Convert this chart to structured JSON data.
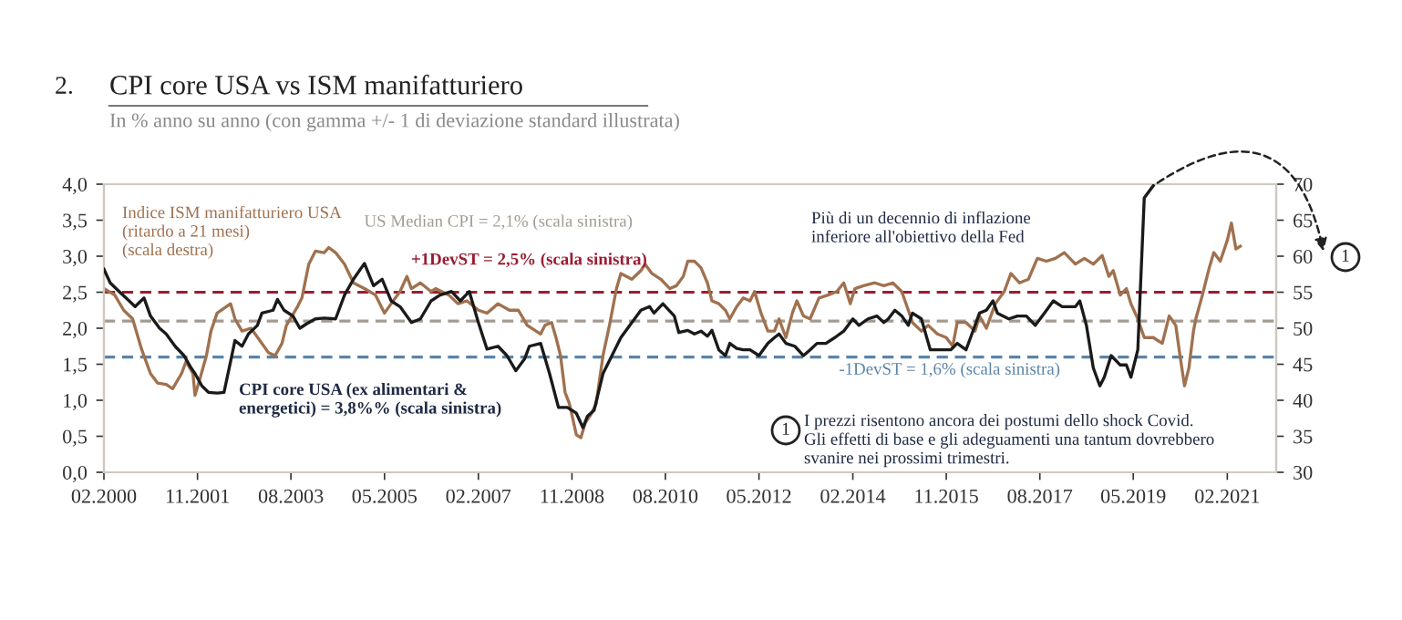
{
  "chart_data": {
    "type": "line",
    "title": "CPI core USA vs ISM manifatturiero",
    "subtitle": "In % anno su anno (con gamma +/- 1 di deviazione standard illustrata)",
    "annotations": [
      "2.",
      "Indice ISM manifatturiero USA\n(ritardo a 21 mesi)\n(scala destra)",
      "CPI core USA (ex alimentari &\nenergetici) = 3,8%% (scala sinistra)",
      "Più di un decennio di inflazione\ninferiore all'obiettivo della Fed",
      "I prezzi risentono ancora dei postumi dello shock Covid.\nGli effetti di base e gli adeguamenti una tantum dovrebbero\nsvanire nei prossimi trimestri.",
      "1",
      "1"
    ],
    "xlim": [
      "2000-02-01",
      "2022-01-01"
    ],
    "xticks": [
      {
        "value": "2000-02",
        "label": "02.2000"
      },
      {
        "value": "2001-11",
        "label": "11.2001"
      },
      {
        "value": "2003-08",
        "label": "08.2003"
      },
      {
        "value": "2005-05",
        "label": "05.2005"
      },
      {
        "value": "2007-02",
        "label": "02.2007"
      },
      {
        "value": "2008-11",
        "label": "11.2008"
      },
      {
        "value": "2010-08",
        "label": "08.2010"
      },
      {
        "value": "2012-05",
        "label": "05.2012"
      },
      {
        "value": "2014-02",
        "label": "02.2014"
      },
      {
        "value": "2015-11",
        "label": "11.2015"
      },
      {
        "value": "2017-08",
        "label": "08.2017"
      },
      {
        "value": "2019-05",
        "label": "05.2019"
      },
      {
        "value": "2021-02",
        "label": "02.2021"
      }
    ],
    "ylim": [
      0,
      4
    ],
    "yticks": [
      {
        "value": 0,
        "label": "0,0"
      },
      {
        "value": 0.5,
        "label": "0,5"
      },
      {
        "value": 1,
        "label": "1,0"
      },
      {
        "value": 1.5,
        "label": "1,5"
      },
      {
        "value": 2,
        "label": "2,0"
      },
      {
        "value": 2.5,
        "label": "2,5"
      },
      {
        "value": 3,
        "label": "3,0"
      },
      {
        "value": 3.5,
        "label": "3,5"
      },
      {
        "value": 4,
        "label": "4,0"
      }
    ],
    "y2lim": [
      30,
      70
    ],
    "y2ticks": [
      30,
      35,
      40,
      45,
      50,
      55,
      60,
      65,
      70
    ],
    "grid": false,
    "legend": false,
    "line_style": "solid",
    "marker": "none",
    "ref_lines": [
      {
        "axis": "y",
        "value": 2.5,
        "label": "+1DevST = 2,5% (scala sinistra)",
        "color": "#9b1c31",
        "line_style": "dashed"
      },
      {
        "axis": "y",
        "value": 2.1,
        "label": "US Median CPI = 2,1% (scala sinistra)",
        "color": "#a39b92",
        "line_style": "dashed"
      },
      {
        "axis": "y",
        "value": 1.6,
        "label": "-1DevST = 1,6% (scala sinistra)",
        "color": "#5b84a8",
        "line_style": "dashed"
      }
    ],
    "series": [
      {
        "color": "#a0714f",
        "axis": "y",
        "x": [
          "2000-02-01",
          "2000-04-15",
          "2000-06-15",
          "2000-08-15",
          "2000-10-15",
          "2000-12-15",
          "2001-02-01",
          "2001-04-01",
          "2001-05-15",
          "2001-07-15",
          "2001-08-15",
          "2001-10-01",
          "2001-10-15",
          "2001-11-15",
          "2002-01-01",
          "2002-02-01",
          "2002-03-15",
          "2002-06-15",
          "2002-07-15",
          "2002-09-01",
          "2002-11-01",
          "2003-01-01",
          "2003-03-01",
          "2003-04-15",
          "2003-06-01",
          "2003-07-01",
          "2003-09-15",
          "2003-10-15",
          "2003-12-01",
          "2004-01-15",
          "2004-03-15",
          "2004-04-15",
          "2004-06-01",
          "2004-08-01",
          "2004-10-01",
          "2004-12-15",
          "2005-03-01",
          "2005-05-01",
          "2005-06-15",
          "2005-08-15",
          "2005-10-01",
          "2005-11-01",
          "2006-01-01",
          "2006-03-15",
          "2006-04-15",
          "2006-07-15",
          "2006-09-15",
          "2006-11-15",
          "2007-02-01",
          "2007-04-01",
          "2007-06-15",
          "2007-09-01",
          "2007-11-01",
          "2008-01-01",
          "2008-04-01",
          "2008-05-01",
          "2008-06-15",
          "2008-07-15",
          "2008-08-15",
          "2008-09-15",
          "2008-10-15",
          "2008-12-01",
          "2009-01-01",
          "2009-02-01",
          "2009-03-15",
          "2009-04-15",
          "2009-06-01",
          "2009-07-15",
          "2009-09-01",
          "2009-10-01",
          "2009-12-15",
          "2010-02-15",
          "2010-03-15",
          "2010-05-01",
          "2010-07-01",
          "2010-09-01",
          "2010-10-15",
          "2010-12-01",
          "2011-01-01",
          "2011-02-15",
          "2011-04-01",
          "2011-05-15",
          "2011-06-15",
          "2011-08-01",
          "2011-09-15",
          "2011-10-15",
          "2011-12-01",
          "2012-01-15",
          "2012-03-01",
          "2012-04-01",
          "2012-05-15",
          "2012-07-01",
          "2012-08-15",
          "2012-09-15",
          "2012-11-01",
          "2012-12-15",
          "2013-01-15",
          "2013-03-01",
          "2013-04-15",
          "2013-06-15",
          "2013-08-15",
          "2013-10-15",
          "2013-12-01",
          "2014-01-15",
          "2014-02-15",
          "2014-04-15",
          "2014-07-01",
          "2014-09-01",
          "2014-11-01",
          "2015-01-01",
          "2015-02-15",
          "2015-03-15",
          "2015-05-15",
          "2015-07-01",
          "2015-09-01",
          "2015-11-01",
          "2015-12-15",
          "2016-01-15",
          "2016-03-15",
          "2016-05-15",
          "2016-06-15",
          "2016-08-01",
          "2016-10-01",
          "2016-12-01",
          "2017-01-15",
          "2017-03-15",
          "2017-05-15",
          "2017-07-15",
          "2017-09-15",
          "2017-11-15",
          "2018-01-15",
          "2018-04-01",
          "2018-06-01",
          "2018-08-01",
          "2018-10-01",
          "2018-11-15",
          "2018-12-15",
          "2019-02-01",
          "2019-03-15",
          "2019-04-15",
          "2019-06-01",
          "2019-07-15",
          "2019-09-15",
          "2019-11-15",
          "2020-01-01",
          "2020-02-15",
          "2020-03-15",
          "2020-04-15",
          "2020-05-15",
          "2020-06-15",
          "2020-07-01",
          "2020-08-15",
          "2020-10-01",
          "2020-11-01",
          "2020-12-15",
          "2021-02-01",
          "2021-03-01",
          "2021-04-01",
          "2021-05-01"
        ],
        "values": [
          2.55,
          2.46,
          2.25,
          2.13,
          1.71,
          1.37,
          1.24,
          1.22,
          1.16,
          1.37,
          1.54,
          1.37,
          1.07,
          1.28,
          1.62,
          1.96,
          2.21,
          2.34,
          2.13,
          1.96,
          2.0,
          1.83,
          1.66,
          1.62,
          1.79,
          2.04,
          2.3,
          2.42,
          2.89,
          3.07,
          3.05,
          3.12,
          3.05,
          2.89,
          2.63,
          2.55,
          2.46,
          2.21,
          2.34,
          2.51,
          2.72,
          2.55,
          2.63,
          2.51,
          2.55,
          2.46,
          2.34,
          2.38,
          2.25,
          2.21,
          2.34,
          2.25,
          2.25,
          2.04,
          1.92,
          2.04,
          2.08,
          1.87,
          1.62,
          1.11,
          0.95,
          0.52,
          0.48,
          0.69,
          0.82,
          0.95,
          1.62,
          2.04,
          2.55,
          2.76,
          2.68,
          2.8,
          2.89,
          2.76,
          2.68,
          2.55,
          2.59,
          2.72,
          2.93,
          2.93,
          2.84,
          2.63,
          2.38,
          2.34,
          2.25,
          2.13,
          2.3,
          2.42,
          2.38,
          2.51,
          2.21,
          1.96,
          1.96,
          2.13,
          1.87,
          2.21,
          2.38,
          2.17,
          2.13,
          2.42,
          2.46,
          2.51,
          2.63,
          2.34,
          2.55,
          2.59,
          2.63,
          2.59,
          2.63,
          2.51,
          2.25,
          2.08,
          1.96,
          2.04,
          1.92,
          1.87,
          1.75,
          2.08,
          2.08,
          1.96,
          2.17,
          2.0,
          2.34,
          2.51,
          2.76,
          2.63,
          2.68,
          2.97,
          2.93,
          2.97,
          3.05,
          2.89,
          2.97,
          2.89,
          3.01,
          2.72,
          2.8,
          2.46,
          2.55,
          2.34,
          2.13,
          1.87,
          1.87,
          1.79,
          2.17,
          2.04,
          1.62,
          1.2,
          1.45,
          1.96,
          2.13,
          2.46,
          2.84,
          3.05,
          2.93,
          3.22,
          3.46,
          3.1,
          3.14
        ]
      },
      {
        "color": "#1a1a1a",
        "axis": "y2",
        "x": [
          "2000-02-01",
          "2000-03-15",
          "2000-05-15",
          "2000-07-01",
          "2000-09-01",
          "2000-11-01",
          "2000-12-15",
          "2001-02-15",
          "2001-04-01",
          "2001-06-01",
          "2001-08-01",
          "2001-09-15",
          "2001-10-15",
          "2001-12-01",
          "2002-01-15",
          "2002-03-15",
          "2002-05-01",
          "2002-06-15",
          "2002-07-15",
          "2002-09-01",
          "2002-10-15",
          "2002-12-15",
          "2003-01-15",
          "2003-04-01",
          "2003-05-01",
          "2003-06-15",
          "2003-08-15",
          "2003-10-01",
          "2003-11-15",
          "2004-01-15",
          "2004-03-15",
          "2004-06-01",
          "2004-08-01",
          "2004-10-01",
          "2004-12-15",
          "2005-02-15",
          "2005-04-15",
          "2005-06-15",
          "2005-08-15",
          "2005-11-01",
          "2006-01-01",
          "2006-03-15",
          "2006-05-15",
          "2006-08-01",
          "2006-10-01",
          "2006-12-01",
          "2007-02-01",
          "2007-04-01",
          "2007-06-15",
          "2007-08-15",
          "2007-10-15",
          "2007-12-15",
          "2008-01-15",
          "2008-04-01",
          "2008-06-01",
          "2008-08-01",
          "2008-10-01",
          "2008-12-01",
          "2009-01-15",
          "2009-02-15",
          "2009-04-01",
          "2009-06-01",
          "2009-08-01",
          "2009-10-01",
          "2009-12-15",
          "2010-02-15",
          "2010-04-15",
          "2010-05-15",
          "2010-07-15",
          "2010-10-01",
          "2010-11-01",
          "2011-01-01",
          "2011-02-15",
          "2011-04-01",
          "2011-05-15",
          "2011-06-15",
          "2011-08-01",
          "2011-09-15",
          "2011-10-15",
          "2011-12-01",
          "2012-01-15",
          "2012-03-01",
          "2012-05-01",
          "2012-07-01",
          "2012-08-15",
          "2012-09-15",
          "2012-11-01",
          "2013-01-01",
          "2013-03-01",
          "2013-04-15",
          "2013-06-01",
          "2013-08-01",
          "2013-10-01",
          "2013-12-01",
          "2014-02-01",
          "2014-03-15",
          "2014-05-15",
          "2014-07-15",
          "2014-09-01",
          "2014-10-01",
          "2014-11-15",
          "2015-01-01",
          "2015-02-15",
          "2015-03-15",
          "2015-05-15",
          "2015-07-15",
          "2015-10-01",
          "2015-12-01",
          "2016-01-15",
          "2016-03-15",
          "2016-04-15",
          "2016-06-15",
          "2016-08-01",
          "2016-09-15",
          "2016-10-15",
          "2017-01-01",
          "2017-03-01",
          "2017-05-01",
          "2017-07-01",
          "2017-09-01",
          "2017-11-01",
          "2018-01-01",
          "2018-04-01",
          "2018-05-01",
          "2018-06-15",
          "2018-08-01",
          "2018-09-15",
          "2018-10-15",
          "2018-12-01",
          "2019-02-01",
          "2019-03-15",
          "2019-04-15",
          "2019-06-01",
          "2019-07-15",
          "2019-09-15"
        ],
        "values": [
          58.2,
          56.3,
          55.1,
          54.2,
          53.0,
          54.2,
          51.7,
          50.0,
          49.2,
          47.5,
          46.2,
          44.6,
          43.7,
          42.0,
          41.1,
          41.0,
          41.1,
          45.4,
          48.3,
          47.5,
          49.2,
          50.4,
          52.1,
          52.5,
          54.0,
          52.5,
          51.7,
          50.0,
          50.6,
          51.3,
          51.4,
          51.3,
          54.6,
          56.8,
          59.0,
          55.9,
          56.8,
          53.8,
          53.0,
          50.8,
          51.3,
          53.8,
          54.6,
          55.1,
          53.8,
          55.1,
          50.8,
          47.1,
          47.5,
          46.2,
          44.1,
          45.8,
          47.5,
          47.9,
          43.7,
          39.0,
          39.0,
          38.2,
          36.2,
          37.8,
          38.6,
          43.7,
          46.2,
          48.7,
          50.8,
          52.5,
          53.0,
          52.1,
          53.4,
          51.7,
          49.4,
          49.7,
          49.2,
          49.6,
          48.9,
          49.7,
          47.0,
          46.2,
          47.9,
          47.2,
          47.0,
          47.0,
          46.2,
          47.9,
          48.7,
          49.2,
          47.9,
          47.5,
          46.2,
          47.0,
          47.9,
          47.9,
          48.7,
          49.6,
          51.3,
          50.4,
          51.3,
          51.7,
          50.8,
          51.3,
          52.5,
          51.7,
          50.4,
          52.1,
          51.3,
          47.0,
          47.0,
          47.0,
          47.9,
          47.0,
          48.7,
          52.1,
          52.5,
          53.8,
          52.1,
          51.3,
          51.7,
          51.7,
          50.4,
          52.1,
          53.8,
          53.0,
          53.0,
          53.8,
          50.4,
          44.5,
          42.0,
          43.2,
          46.2,
          44.9,
          44.9,
          43.2,
          47.0,
          68.1,
          69.8
        ]
      }
    ]
  }
}
